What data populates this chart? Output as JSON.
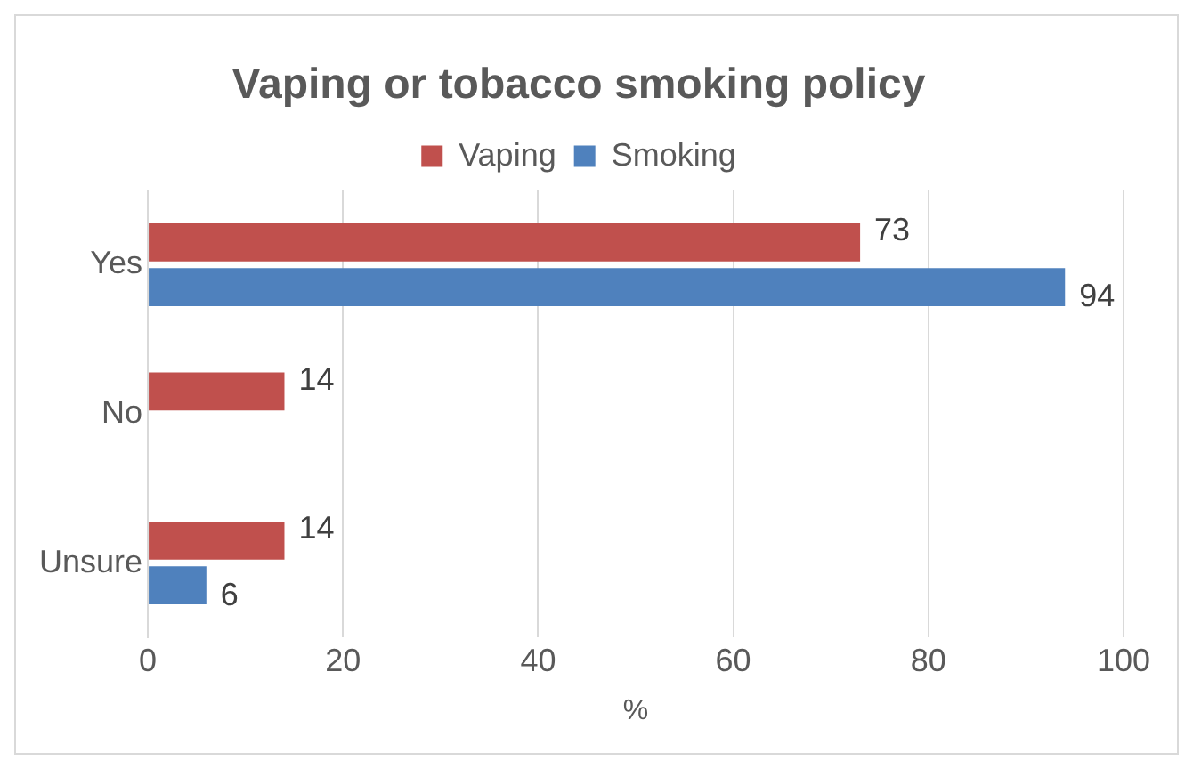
{
  "chart_data": {
    "type": "bar",
    "orientation": "horizontal",
    "title": "Vaping or tobacco smoking policy",
    "xlabel": "%",
    "categories": [
      "Yes",
      "No",
      "Unsure"
    ],
    "series": [
      {
        "name": "Vaping",
        "color": "#c0504d",
        "values": [
          73,
          14,
          14
        ]
      },
      {
        "name": "Smoking",
        "color": "#4f81bd",
        "values": [
          94,
          null,
          6
        ]
      }
    ],
    "xlim": [
      0,
      100
    ],
    "xticks": [
      0,
      20,
      40,
      60,
      80,
      100
    ],
    "grid": "x",
    "legend": "top",
    "data_labels": true
  }
}
